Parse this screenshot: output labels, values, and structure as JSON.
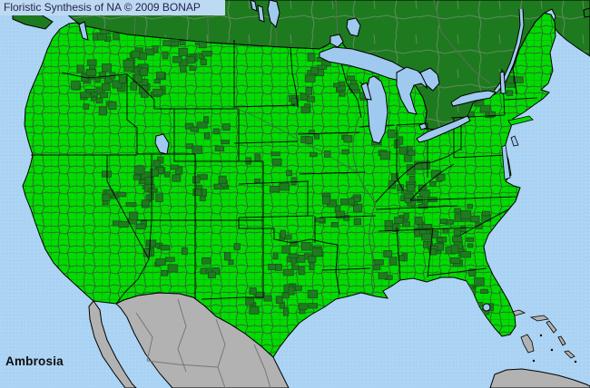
{
  "header": {
    "title": "Floristic Synthesis of NA © 2009 BONAP"
  },
  "map": {
    "taxon_label": "Ambrosia",
    "colors": {
      "ocean": "#a9d2f3",
      "ocean_dot": "#bfddf8",
      "titlebar_bg": "#bed9f2",
      "titlebar_text": "#23234f",
      "us_present_bright": "#00dc00",
      "county_line": "#2e6d2e",
      "dark_green_county": "#1f7b1f",
      "dark_county_line": "#145817",
      "canada_land": "#1e7a1e",
      "canada_division_line": "#6f906f",
      "province_line": "#5a6e5a",
      "border_black": "#000000",
      "mexico_land": "#b2b2b2",
      "mexico_division_line": "#777777",
      "lake_fill": "#9fc9ef",
      "river_line": "#3a6b3a",
      "label_text": "#0d0d0d"
    }
  }
}
